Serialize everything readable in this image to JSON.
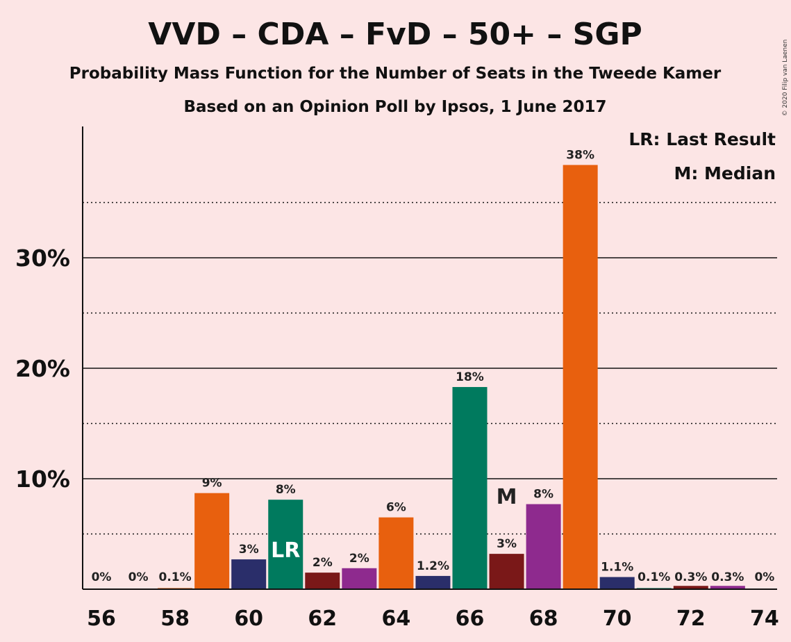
{
  "copyright": "© 2020 Filip van Laenen",
  "chart_data": {
    "type": "bar",
    "title": "VVD – CDA – FvD – 50+ – SGP",
    "subtitle": "Probability Mass Function for the Number of Seats in the Tweede Kamer",
    "subtitle2": "Based on an Opinion Poll by Ipsos, 1 June 2017",
    "xlabel": "",
    "ylabel": "",
    "ylim": [
      0,
      41.5
    ],
    "yticks_major": [
      10,
      20,
      30
    ],
    "ytick_labels": [
      "10%",
      "20%",
      "30%"
    ],
    "yticks_minor": [
      5,
      15,
      25,
      35
    ],
    "xticks": [
      56,
      58,
      60,
      62,
      64,
      66,
      68,
      70,
      72,
      74
    ],
    "xtick_labels": [
      "56",
      "58",
      "60",
      "62",
      "64",
      "66",
      "68",
      "70",
      "72",
      "74"
    ],
    "legend": [
      "LR: Last Result",
      "M: Median"
    ],
    "legend_position": "top-right",
    "last_result_seats": 61,
    "last_result_label": "LR",
    "median_seats": 67,
    "median_label": "M",
    "party_colors": [
      "#e8600e",
      "#2a2e6a",
      "#007a5e",
      "#7a1818",
      "#8e2a8e"
    ],
    "bars": [
      {
        "seats": 56,
        "value": 0,
        "label": "0%",
        "color": "#7a1818"
      },
      {
        "seats": 57,
        "value": 0,
        "label": "0%",
        "color": "#8e2a8e"
      },
      {
        "seats": 58,
        "value": 0.1,
        "label": "0.1%",
        "color": "#e8600e"
      },
      {
        "seats": 59,
        "value": 8.7,
        "label": "9%",
        "color": "#e8600e"
      },
      {
        "seats": 60,
        "value": 2.7,
        "label": "3%",
        "color": "#2a2e6a"
      },
      {
        "seats": 61,
        "value": 8.1,
        "label": "8%",
        "color": "#007a5e"
      },
      {
        "seats": 62,
        "value": 1.5,
        "label": "2%",
        "color": "#7a1818"
      },
      {
        "seats": 63,
        "value": 1.9,
        "label": "2%",
        "color": "#8e2a8e"
      },
      {
        "seats": 64,
        "value": 6.5,
        "label": "6%",
        "color": "#e8600e"
      },
      {
        "seats": 65,
        "value": 1.2,
        "label": "1.2%",
        "color": "#2a2e6a"
      },
      {
        "seats": 66,
        "value": 18.3,
        "label": "18%",
        "color": "#007a5e"
      },
      {
        "seats": 67,
        "value": 3.2,
        "label": "3%",
        "color": "#7a1818"
      },
      {
        "seats": 68,
        "value": 7.7,
        "label": "8%",
        "color": "#8e2a8e"
      },
      {
        "seats": 69,
        "value": 38.4,
        "label": "38%",
        "color": "#e8600e"
      },
      {
        "seats": 70,
        "value": 1.1,
        "label": "1.1%",
        "color": "#2a2e6a"
      },
      {
        "seats": 71,
        "value": 0.1,
        "label": "0.1%",
        "color": "#007a5e"
      },
      {
        "seats": 72,
        "value": 0.3,
        "label": "0.3%",
        "color": "#7a1818"
      },
      {
        "seats": 73,
        "value": 0.3,
        "label": "0.3%",
        "color": "#8e2a8e"
      },
      {
        "seats": 74,
        "value": 0,
        "label": "0%",
        "color": "#e8600e"
      }
    ]
  }
}
